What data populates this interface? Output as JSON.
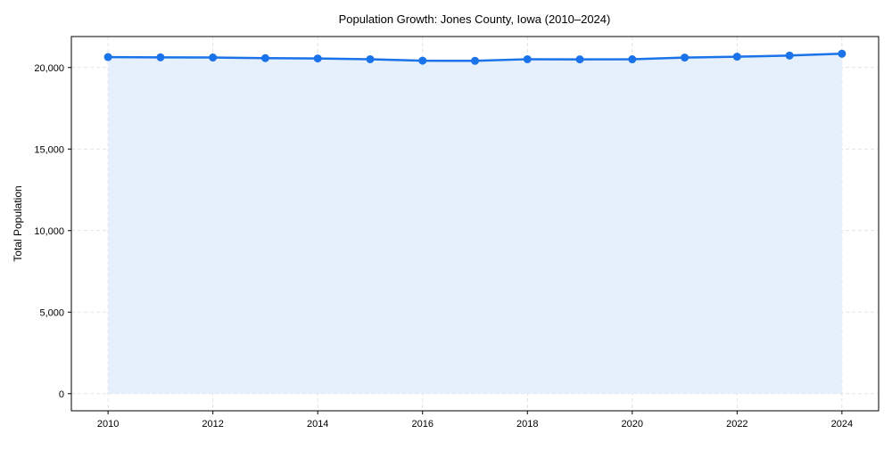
{
  "chart_data": {
    "type": "line",
    "title": "Population Growth: Jones County, Iowa (2010–2024)",
    "xlabel": "",
    "ylabel": "Total Population",
    "x": [
      2010,
      2011,
      2012,
      2013,
      2014,
      2015,
      2016,
      2017,
      2018,
      2019,
      2020,
      2021,
      2022,
      2023,
      2024
    ],
    "series": [
      {
        "name": "Total Population",
        "values": [
          20640,
          20625,
          20615,
          20575,
          20555,
          20510,
          20420,
          20410,
          20510,
          20500,
          20505,
          20610,
          20665,
          20735,
          20845
        ],
        "color": "#1a73e8",
        "fill": true,
        "markers": true
      }
    ],
    "xlim": [
      2009.3,
      2024.7
    ],
    "ylim": [
      -1050,
      21900
    ],
    "xticks": [
      2010,
      2012,
      2014,
      2016,
      2018,
      2020,
      2022,
      2024
    ],
    "yticks": [
      0,
      5000,
      10000,
      15000,
      20000
    ],
    "ytick_labels": [
      "0",
      "5,000",
      "10,000",
      "15,000",
      "20,000"
    ],
    "grid": true,
    "legend": null
  },
  "colors": {
    "line": "#1a73e8",
    "fill": "#e3eefd",
    "grid": "#d9d9d9",
    "axis": "#000000"
  }
}
